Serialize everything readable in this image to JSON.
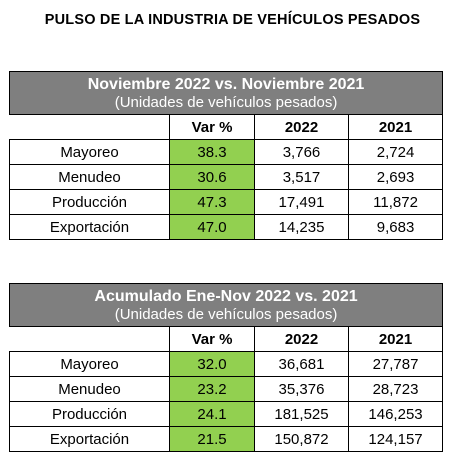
{
  "page_title": "PULSO DE LA INDUSTRIA DE VEHÍCULOS PESADOS",
  "tables": [
    {
      "title": "Noviembre 2022 vs. Noviembre 2021",
      "subtitle": "(Unidades de vehículos pesados)",
      "columns": [
        "Var %",
        "2022",
        "2021"
      ],
      "rows": [
        {
          "label": "Mayoreo",
          "var": "38.3",
          "y2022": "3,766",
          "y2021": "2,724"
        },
        {
          "label": "Menudeo",
          "var": "30.6",
          "y2022": "3,517",
          "y2021": "2,693"
        },
        {
          "label": "Producción",
          "var": "47.3",
          "y2022": "17,491",
          "y2021": "11,872"
        },
        {
          "label": "Exportación",
          "var": "47.0",
          "y2022": "14,235",
          "y2021": "9,683"
        }
      ]
    },
    {
      "title": "Acumulado Ene-Nov 2022 vs. 2021",
      "subtitle": "(Unidades de vehículos pesados)",
      "columns": [
        "Var %",
        "2022",
        "2021"
      ],
      "rows": [
        {
          "label": "Mayoreo",
          "var": "32.0",
          "y2022": "36,681",
          "y2021": "27,787"
        },
        {
          "label": "Menudeo",
          "var": "23.2",
          "y2022": "35,376",
          "y2021": "28,723"
        },
        {
          "label": "Producción",
          "var": "24.1",
          "y2022": "181,525",
          "y2021": "146,253"
        },
        {
          "label": "Exportación",
          "var": "21.5",
          "y2022": "150,872",
          "y2021": "124,157"
        }
      ]
    }
  ],
  "colors": {
    "header_bg": "#7f7f7f",
    "var_bg": "#92d050"
  }
}
